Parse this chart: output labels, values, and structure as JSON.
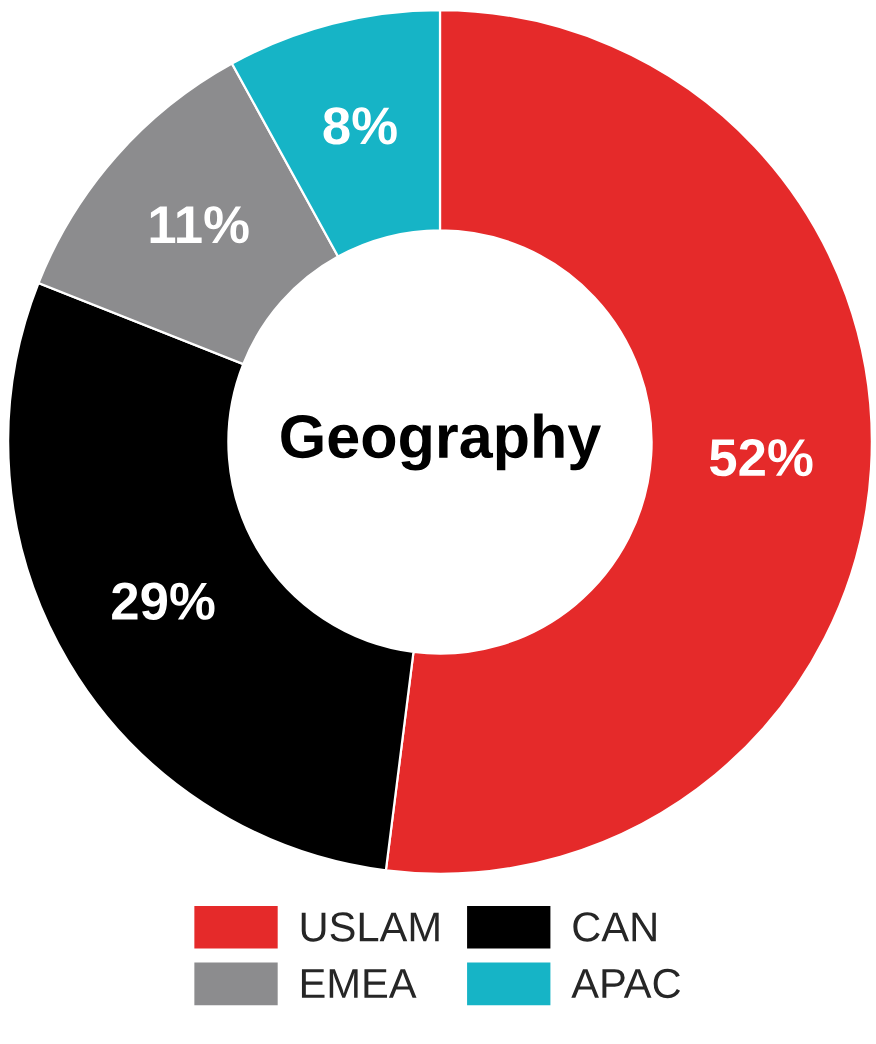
{
  "chart_data": {
    "type": "donut",
    "title": "Geography",
    "categories": [
      "USLAM",
      "CAN",
      "EMEA",
      "APAC"
    ],
    "values": [
      52,
      29,
      11,
      8
    ],
    "colors": [
      "#e52a2a",
      "#000000",
      "#8c8c8e",
      "#16b4c6"
    ],
    "value_labels": [
      "52%",
      "29%",
      "11%",
      "8%"
    ],
    "legend": "bottom"
  }
}
